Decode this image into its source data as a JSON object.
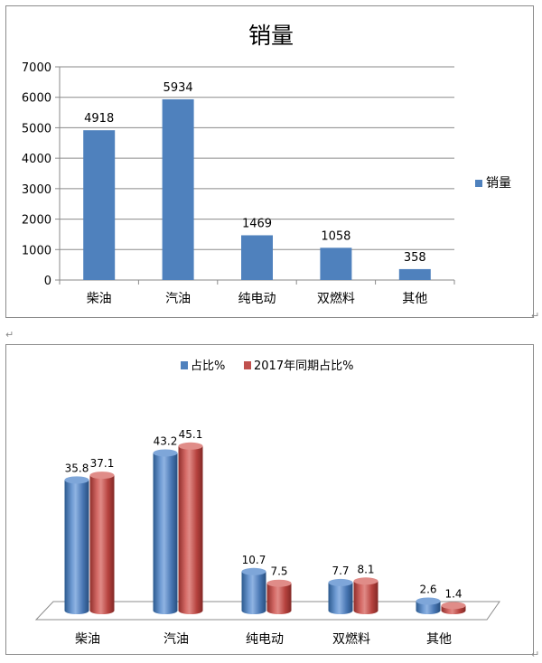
{
  "chart_data": [
    {
      "type": "bar",
      "title": "销量",
      "categories": [
        "柴油",
        "汽油",
        "纯电动",
        "双燃料",
        "其他"
      ],
      "series": [
        {
          "name": "销量",
          "values": [
            4918,
            5934,
            1469,
            1058,
            358
          ]
        }
      ],
      "ylim": [
        0,
        7000
      ],
      "yticks": [
        0,
        1000,
        2000,
        3000,
        4000,
        5000,
        6000,
        7000
      ],
      "grid": true,
      "legend": "right",
      "colors": [
        "#4f81bd"
      ]
    },
    {
      "type": "bar",
      "title": "",
      "categories": [
        "柴油",
        "汽油",
        "纯电动",
        "双燃料",
        "其他"
      ],
      "series": [
        {
          "name": "占比%",
          "values": [
            35.8,
            43.2,
            10.7,
            7.7,
            2.6
          ]
        },
        {
          "name": "2017年同期占比%",
          "values": [
            37.1,
            45.1,
            7.5,
            8.1,
            1.4
          ]
        }
      ],
      "grid": false,
      "legend": "top",
      "style": "3d-cylinder",
      "colors": [
        "#4f81bd",
        "#c0504d"
      ]
    }
  ],
  "marks": {
    "return_mark": "↵"
  }
}
